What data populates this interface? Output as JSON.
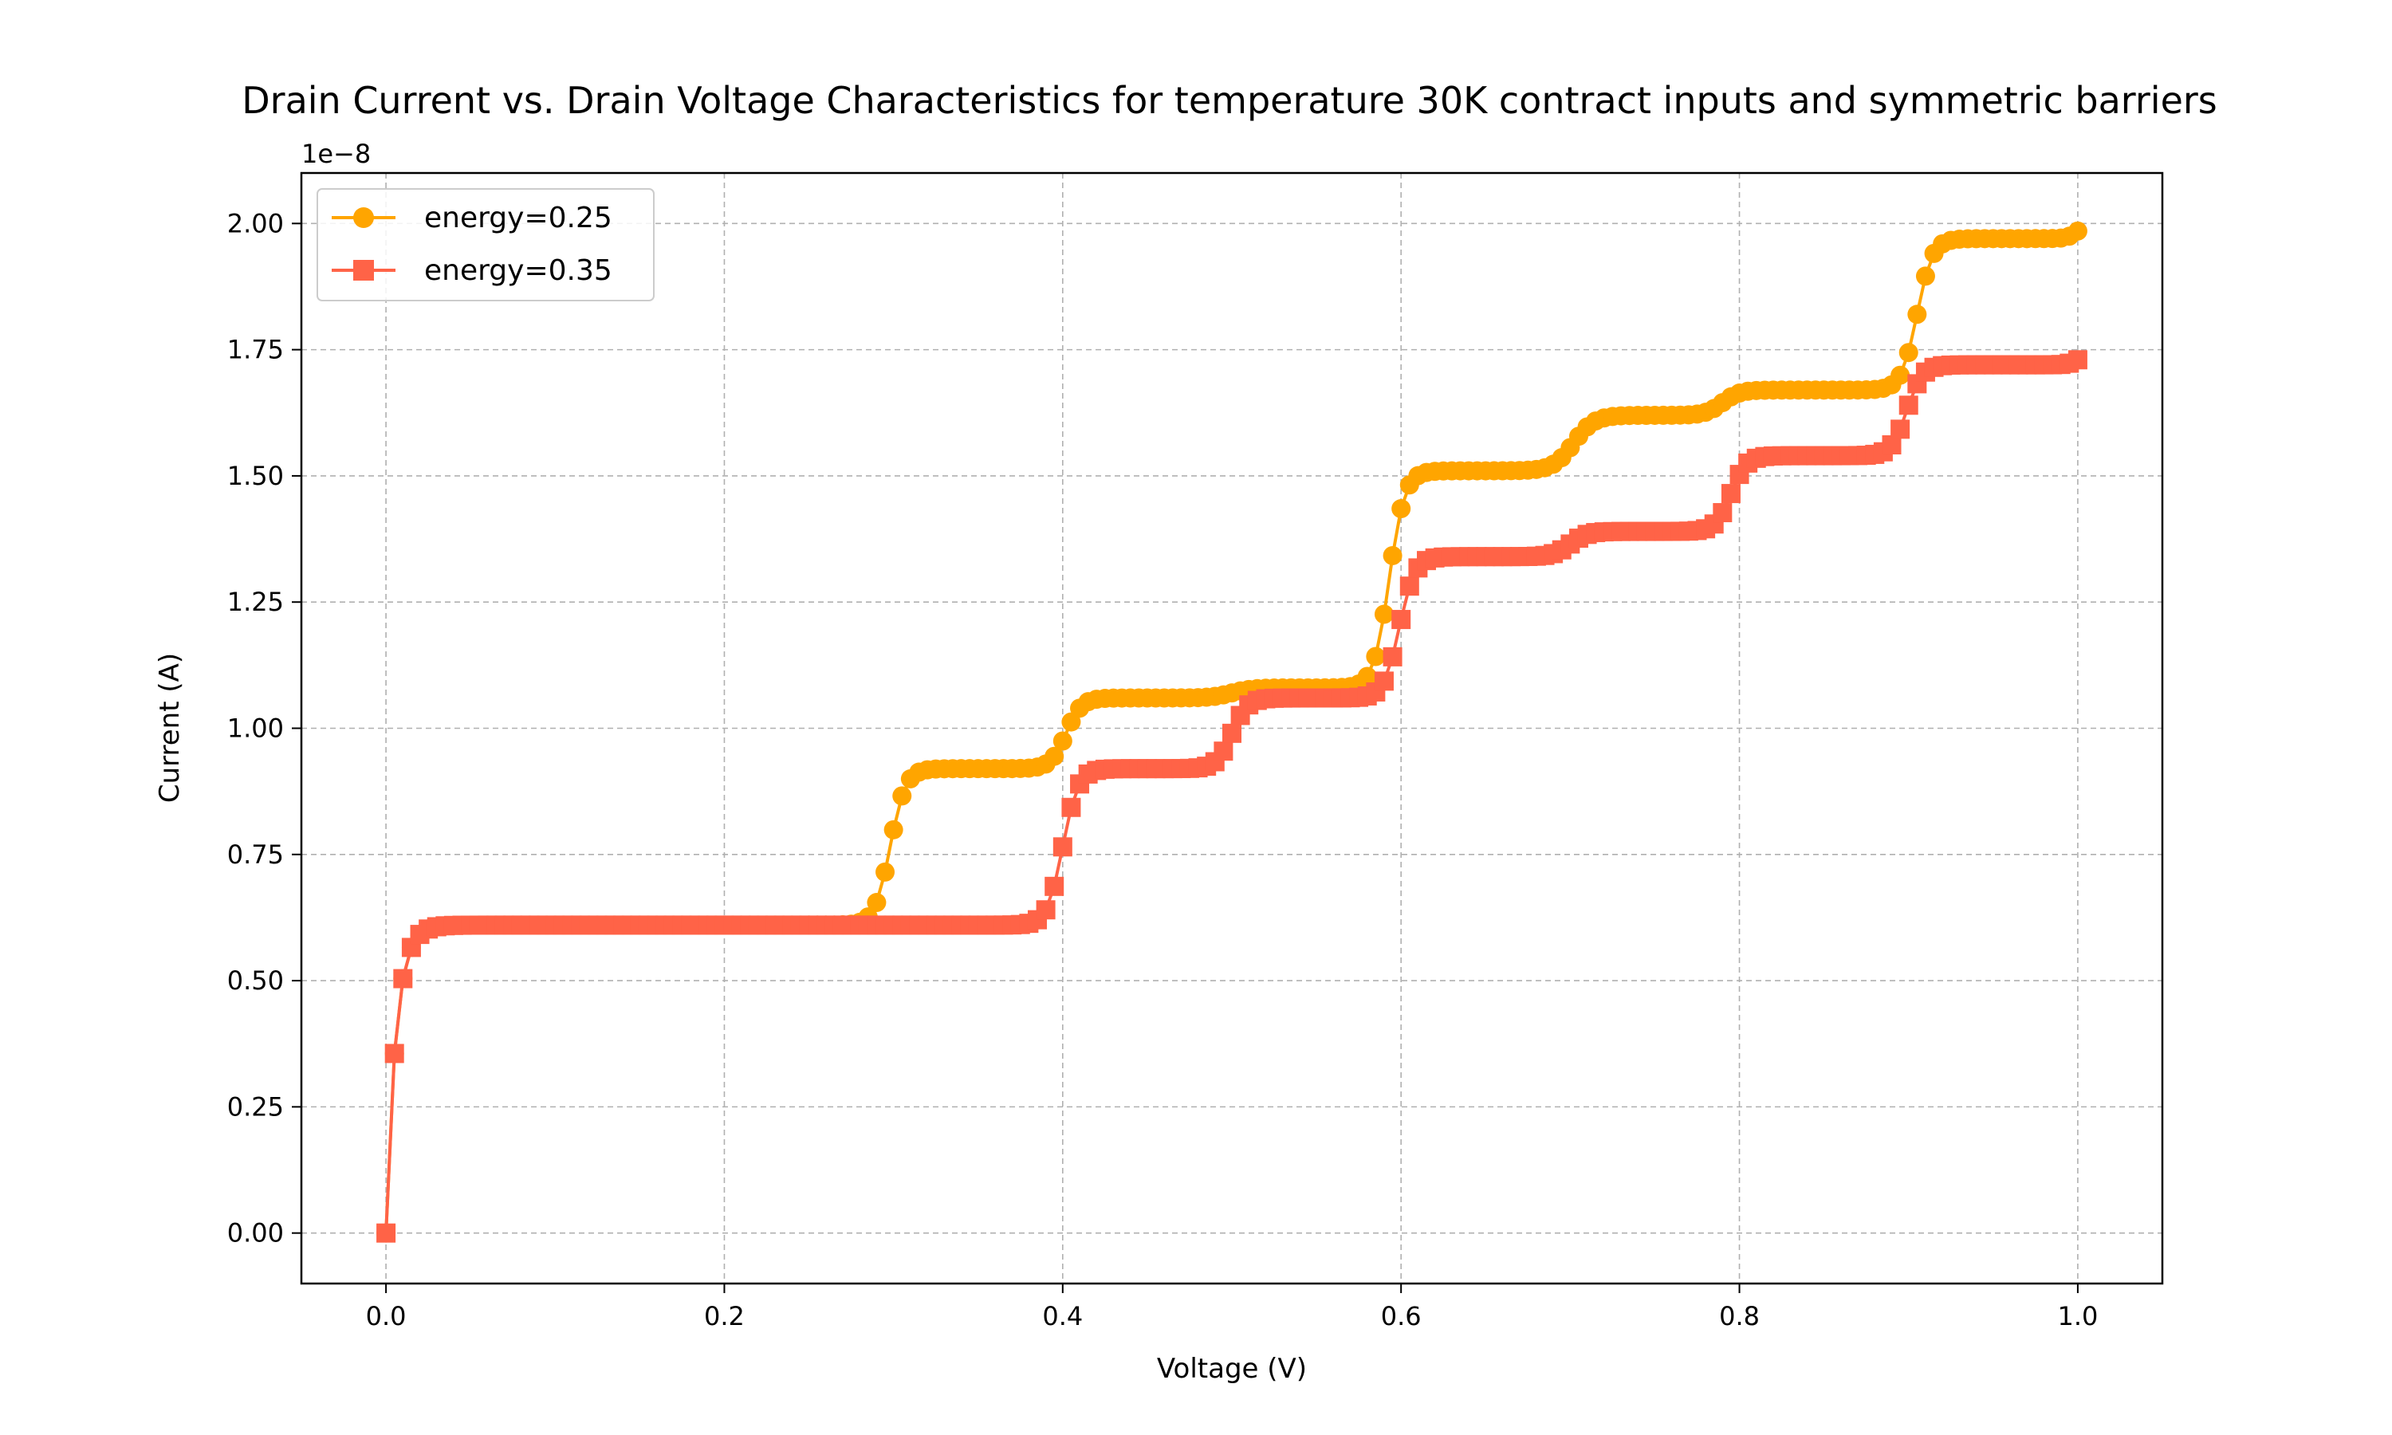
{
  "chart_data": {
    "type": "line",
    "title": "Drain Current vs. Drain Voltage Characteristics for temperature 30K contract inputs and symmetric barriers",
    "xlabel": "Voltage (V)",
    "ylabel": "Current (A)",
    "y_offset_text": "1e−8",
    "y_scale": 1e-08,
    "xlim": [
      -0.05,
      1.05
    ],
    "ylim": [
      -0.1,
      2.1
    ],
    "x_ticks": [
      0.0,
      0.2,
      0.4,
      0.6,
      0.8,
      1.0
    ],
    "x_tick_labels": [
      "0.0",
      "0.2",
      "0.4",
      "0.6",
      "0.8",
      "1.0"
    ],
    "y_ticks": [
      0.0,
      0.25,
      0.5,
      0.75,
      1.0,
      1.25,
      1.5,
      1.75,
      2.0
    ],
    "y_tick_labels": [
      "0.00",
      "0.25",
      "0.50",
      "0.75",
      "1.00",
      "1.25",
      "1.50",
      "1.75",
      "2.00"
    ],
    "grid": true,
    "legend_position": "top-left",
    "x_start": 0.0,
    "x_end": 1.0,
    "x_step": 0.005,
    "series": [
      {
        "name": "energy=0.25",
        "color": "#FFA500",
        "marker": "circle",
        "base": 0.61,
        "onset": 0.004,
        "rise_width": 0.006,
        "steps": [
          {
            "x": 0.298,
            "h": 0.31,
            "w": 0.0045
          },
          {
            "x": 0.402,
            "h": 0.14,
            "w": 0.0045
          },
          {
            "x": 0.5,
            "h": 0.02,
            "w": 0.006
          },
          {
            "x": 0.593,
            "h": 0.43,
            "w": 0.0045
          },
          {
            "x": 0.702,
            "h": 0.11,
            "w": 0.006
          },
          {
            "x": 0.79,
            "h": 0.05,
            "w": 0.005
          },
          {
            "x": 0.905,
            "h": 0.3,
            "w": 0.0045
          },
          {
            "x": 1.0,
            "h": 0.03,
            "w": 0.003
          }
        ]
      },
      {
        "name": "energy=0.35",
        "color": "#FF6347",
        "marker": "square",
        "base": 0.61,
        "onset": 0.004,
        "rise_width": 0.006,
        "steps": [
          {
            "x": 0.4,
            "h": 0.31,
            "w": 0.0045
          },
          {
            "x": 0.5,
            "h": 0.14,
            "w": 0.0045
          },
          {
            "x": 0.599,
            "h": 0.28,
            "w": 0.0045
          },
          {
            "x": 0.7,
            "h": 0.05,
            "w": 0.005
          },
          {
            "x": 0.795,
            "h": 0.15,
            "w": 0.0045
          },
          {
            "x": 0.899,
            "h": 0.18,
            "w": 0.0045
          },
          {
            "x": 1.0,
            "h": 0.02,
            "w": 0.003
          }
        ]
      }
    ]
  }
}
